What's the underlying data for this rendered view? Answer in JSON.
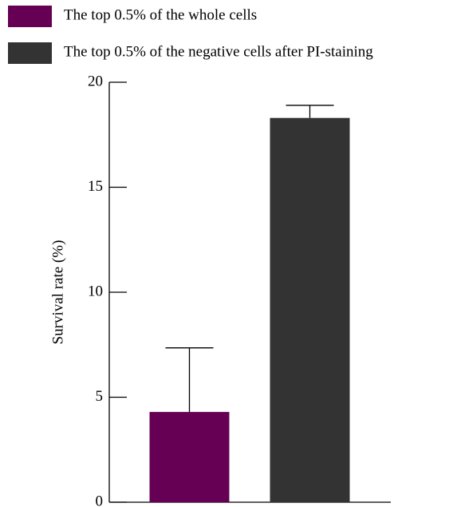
{
  "chart_data": {
    "type": "bar",
    "ylabel": "Survival rate (%)",
    "ylim": [
      0,
      20
    ],
    "yticks": [
      0,
      5,
      10,
      15,
      20
    ],
    "series": [
      {
        "name": "The top 0.5% of the whole cells",
        "color": "#660055",
        "values": [
          4.3
        ],
        "errors": [
          3.05
        ]
      },
      {
        "name": "The top 0.5% of the negative cells after PI-staining",
        "color": "#333333",
        "values": [
          18.3
        ],
        "errors": [
          0.6
        ]
      }
    ]
  }
}
